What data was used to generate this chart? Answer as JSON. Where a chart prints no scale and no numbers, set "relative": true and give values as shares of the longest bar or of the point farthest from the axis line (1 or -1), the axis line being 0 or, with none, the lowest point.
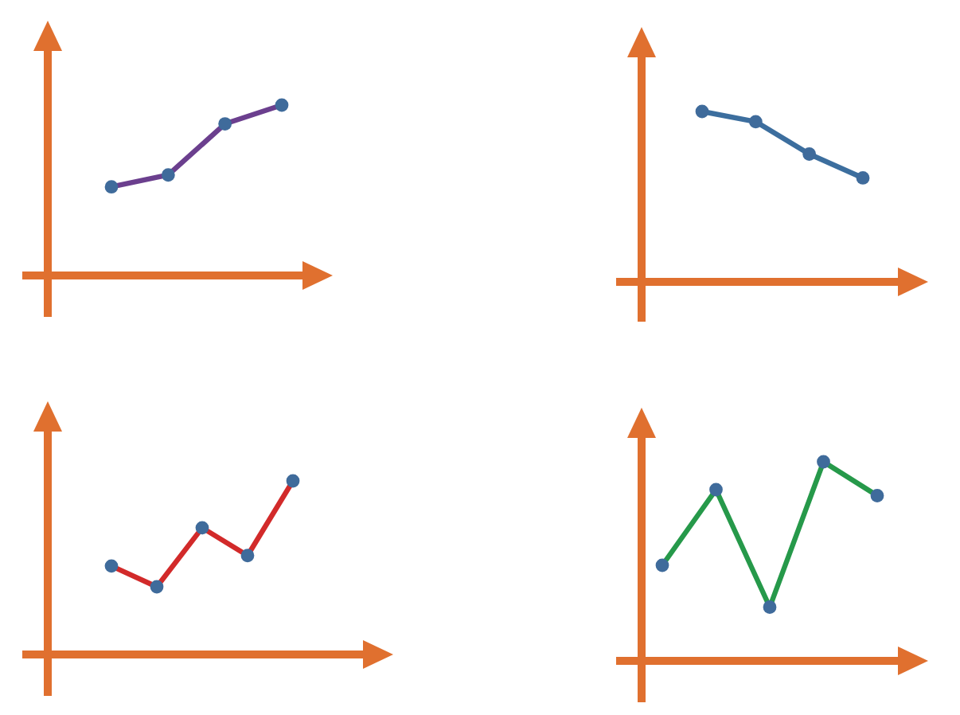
{
  "chart_data": [
    {
      "type": "line",
      "relative": true,
      "categories": [
        null,
        null,
        null,
        null
      ],
      "marker": "circle",
      "series": [
        {
          "color": "#6b3f8e",
          "colors": [
            "#3f6b9b",
            "#3f6b9b",
            "#3f6b9b",
            "#3f6b9b"
          ],
          "values": [
            0.52,
            0.59,
            0.89,
            1
          ]
        }
      ]
    },
    {
      "type": "line",
      "relative": true,
      "categories": [
        null,
        null,
        null,
        null
      ],
      "marker": "circle",
      "series": [
        {
          "color": "#3c6e9e",
          "colors": [
            "#3f6b9b",
            "#3f6b9b",
            "#3f6b9b",
            "#3f6b9b"
          ],
          "values": [
            1,
            0.94,
            0.75,
            0.61
          ]
        }
      ]
    },
    {
      "type": "line",
      "relative": true,
      "categories": [
        null,
        null,
        null,
        null,
        null
      ],
      "marker": "circle",
      "series": [
        {
          "color": "#d22a2a",
          "colors": [
            "#3f6b9b",
            "#3f6b9b",
            "#3f6b9b",
            "#3f6b9b",
            "#3f6b9b"
          ],
          "values": [
            0.51,
            0.39,
            0.73,
            0.57,
            1
          ]
        }
      ]
    },
    {
      "type": "line",
      "relative": true,
      "categories": [
        null,
        null,
        null,
        null,
        null
      ],
      "marker": "circle",
      "series": [
        {
          "color": "#26994a",
          "colors": [
            "#3f6b9b",
            "#3f6b9b",
            "#3f6b9b",
            "#3f6b9b",
            "#3f6b9b"
          ],
          "values": [
            0.48,
            0.86,
            0.27,
            1,
            0.83
          ]
        }
      ]
    }
  ]
}
